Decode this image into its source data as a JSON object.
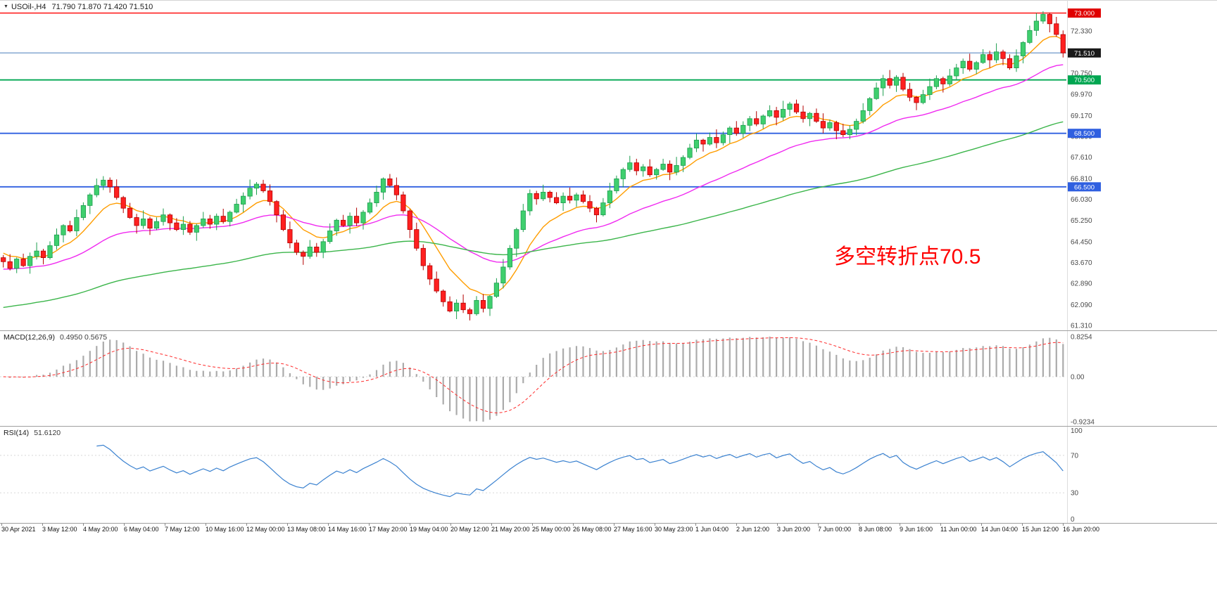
{
  "header": {
    "marker": "▼",
    "symbol": "USOil-,H4",
    "ohlc": "71.790 71.870 71.420 71.510"
  },
  "annotation": {
    "text": "多空转折点70.5",
    "color": "#ff0000"
  },
  "macd_panel": {
    "label": "MACD(12,26,9)",
    "values": "0.4950 0.5675",
    "axis": [
      {
        "t": "0.8254",
        "v": 0.8254
      },
      {
        "t": "0.00",
        "v": 0
      },
      {
        "t": "-0.9234",
        "v": -0.9234
      }
    ]
  },
  "rsi_panel": {
    "label": "RSI(14)",
    "value": "51.6120",
    "axis": [
      {
        "t": "100",
        "v": 100
      },
      {
        "t": "70",
        "v": 70
      },
      {
        "t": "30",
        "v": 30
      },
      {
        "t": "0",
        "v": 0
      }
    ],
    "levels": [
      70,
      30
    ]
  },
  "colors": {
    "bull": "#3fcf6e",
    "bull_border": "#1d9e4f",
    "bear": "#ff2020",
    "bear_border": "#b30000",
    "macd_hist": "#ababab",
    "macd_signal": "#ff2a2a",
    "rsi_line": "#3b82d0",
    "axis_text": "#4a4a4a",
    "annotation": "#ff0000"
  },
  "chart_data": {
    "type": "candlestick",
    "title": "USOil-,H4",
    "y_range": [
      61.13,
      73.49
    ],
    "first_open": 63.85,
    "closes": [
      63.7,
      63.45,
      63.8,
      63.55,
      63.9,
      64.1,
      63.85,
      64.3,
      64.7,
      65.05,
      64.85,
      65.35,
      65.8,
      66.2,
      66.55,
      66.75,
      66.5,
      66.1,
      65.7,
      65.35,
      65.05,
      65.3,
      64.95,
      65.2,
      65.45,
      65.15,
      64.9,
      65.1,
      64.8,
      65.05,
      65.3,
      65.1,
      65.4,
      65.2,
      65.55,
      65.85,
      66.15,
      66.45,
      66.6,
      66.35,
      65.95,
      65.45,
      64.9,
      64.4,
      64.05,
      63.9,
      64.25,
      64.05,
      64.45,
      64.85,
      65.25,
      65.05,
      65.4,
      65.15,
      65.55,
      65.9,
      66.3,
      66.8,
      66.55,
      66.2,
      65.6,
      64.9,
      64.2,
      63.55,
      63.05,
      62.6,
      62.2,
      61.85,
      62.15,
      61.9,
      61.75,
      62.25,
      61.95,
      62.4,
      62.9,
      63.5,
      64.2,
      64.9,
      65.6,
      66.25,
      66.05,
      66.3,
      66.1,
      65.9,
      66.15,
      66.0,
      66.2,
      65.95,
      65.7,
      65.45,
      65.9,
      66.35,
      66.8,
      67.15,
      67.4,
      67.1,
      67.25,
      66.95,
      67.15,
      67.35,
      67.05,
      67.3,
      67.6,
      67.95,
      68.25,
      68.1,
      68.35,
      68.15,
      68.45,
      68.7,
      68.5,
      68.8,
      69.05,
      68.85,
      69.15,
      69.35,
      69.1,
      69.4,
      69.6,
      69.3,
      69.05,
      69.25,
      68.95,
      68.7,
      68.9,
      68.6,
      68.45,
      68.65,
      68.95,
      69.35,
      69.8,
      70.2,
      70.55,
      70.3,
      70.6,
      70.15,
      69.85,
      69.65,
      69.95,
      70.25,
      70.55,
      70.35,
      70.65,
      70.95,
      71.2,
      70.9,
      71.15,
      71.45,
      71.25,
      71.55,
      71.3,
      70.95,
      71.4,
      71.9,
      72.35,
      72.7,
      72.95,
      72.6,
      72.2,
      71.51
    ],
    "wick_up": [
      0.1,
      0.28,
      0.06,
      0.2,
      0.14,
      0.32,
      0.08,
      0.16,
      0.24,
      0.05,
      0.18,
      0.3,
      0.12,
      0.07,
      0.26,
      0.15
    ],
    "wick_dn": [
      0.22,
      0.08,
      0.18,
      0.05,
      0.3,
      0.12,
      0.25,
      0.07,
      0.15,
      0.28,
      0.06,
      0.2,
      0.1,
      0.32,
      0.09,
      0.17
    ],
    "moving_averages": [
      {
        "period": 9,
        "color": "#ff9d00",
        "seed": 64.1
      },
      {
        "period": 30,
        "color": "#f02af0",
        "seed": 63.4
      },
      {
        "period": 90,
        "color": "#3bb54a",
        "seed": 61.95
      }
    ],
    "hlines": [
      {
        "p": 73.0,
        "color": "#ff0000",
        "w": 1.4
      },
      {
        "p": 71.51,
        "color": "#4a7ebb",
        "w": 1
      },
      {
        "p": 70.5,
        "color": "#00a651",
        "w": 1.8
      },
      {
        "p": 68.5,
        "color": "#2f5fe0",
        "w": 1.8
      },
      {
        "p": 66.5,
        "color": "#2f5fe0",
        "w": 1.8
      }
    ],
    "price_axis_ticks": [
      {
        "t": "72.330",
        "p": 72.33
      },
      {
        "t": "70.750",
        "p": 70.75
      },
      {
        "t": "69.970",
        "p": 69.97
      },
      {
        "t": "69.170",
        "p": 69.17
      },
      {
        "t": "68.390",
        "p": 68.39
      },
      {
        "t": "67.610",
        "p": 67.61
      },
      {
        "t": "66.810",
        "p": 66.81
      },
      {
        "t": "66.030",
        "p": 66.03
      },
      {
        "t": "65.250",
        "p": 65.25
      },
      {
        "t": "64.450",
        "p": 64.45
      },
      {
        "t": "63.670",
        "p": 63.67
      },
      {
        "t": "62.890",
        "p": 62.89
      },
      {
        "t": "62.090",
        "p": 62.09
      },
      {
        "t": "61.310",
        "p": 61.31
      }
    ],
    "price_badges": [
      {
        "t": "73.000",
        "p": 73.0,
        "bg": "#e00000"
      },
      {
        "t": "71.510",
        "p": 71.51,
        "bg": "#1a1a1a"
      },
      {
        "t": "70.500",
        "p": 70.5,
        "bg": "#00a651"
      },
      {
        "t": "68.500",
        "p": 68.5,
        "bg": "#2f5fe0"
      },
      {
        "t": "66.500",
        "p": 66.5,
        "bg": "#2f5fe0"
      }
    ],
    "time_labels": [
      "30 Apr 2021",
      "3 May 12:00",
      "4 May 20:00",
      "6 May 04:00",
      "7 May 12:00",
      "10 May 16:00",
      "12 May 00:00",
      "13 May 08:00",
      "14 May 16:00",
      "17 May 20:00",
      "19 May 04:00",
      "20 May 12:00",
      "21 May 20:00",
      "25 May 00:00",
      "26 May 08:00",
      "27 May 16:00",
      "30 May 23:00",
      "1 Jun 04:00",
      "2 Jun 12:00",
      "3 Jun 20:00",
      "7 Jun 00:00",
      "8 Jun 08:00",
      "9 Jun 16:00",
      "11 Jun 00:00",
      "14 Jun 04:00",
      "15 Jun 12:00",
      "16 Jun 20:00"
    ],
    "macd": {
      "fast": 12,
      "slow": 26,
      "signal_period": 9,
      "display_max": 0.8254,
      "display_min": -0.9234,
      "current_main": 0.495,
      "current_signal": 0.5675
    },
    "rsi": {
      "period": 14,
      "current": 51.612,
      "range": [
        0,
        100
      ]
    }
  }
}
